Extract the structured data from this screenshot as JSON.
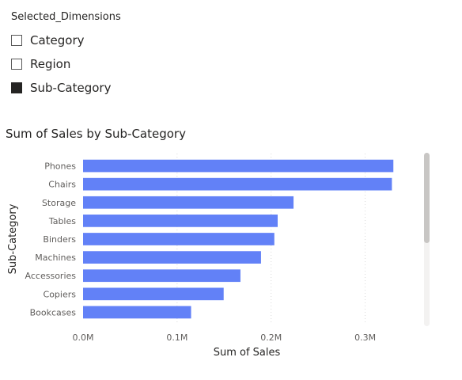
{
  "slicer": {
    "title": "Selected_Dimensions",
    "items": [
      {
        "label": "Category",
        "checked": false
      },
      {
        "label": "Region",
        "checked": false
      },
      {
        "label": "Sub-Category",
        "checked": true
      }
    ]
  },
  "chart_title": "Sum of Sales by Sub-Category",
  "chart_data": {
    "type": "bar",
    "orientation": "horizontal",
    "title": "Sum of Sales by Sub-Category",
    "xlabel": "Sum of Sales",
    "ylabel": "Sub-Category",
    "categories": [
      "Phones",
      "Chairs",
      "Storage",
      "Tables",
      "Binders",
      "Machines",
      "Accessories",
      "Copiers",
      "Bookcases"
    ],
    "values": [
      330007,
      328449,
      223844,
      206966,
      203413,
      189239,
      167380,
      149528,
      114880
    ],
    "xlim": [
      0,
      350000
    ],
    "xticks": [
      0,
      100000,
      200000,
      300000
    ],
    "xtick_labels": [
      "0.0M",
      "0.1M",
      "0.2M",
      "0.3M"
    ],
    "grid": "vertical dotted",
    "bar_color": "#6281f7"
  },
  "colors": {
    "bar": "#6281f7",
    "grid": "#d9d9d9",
    "axis_text": "#605e5c"
  }
}
